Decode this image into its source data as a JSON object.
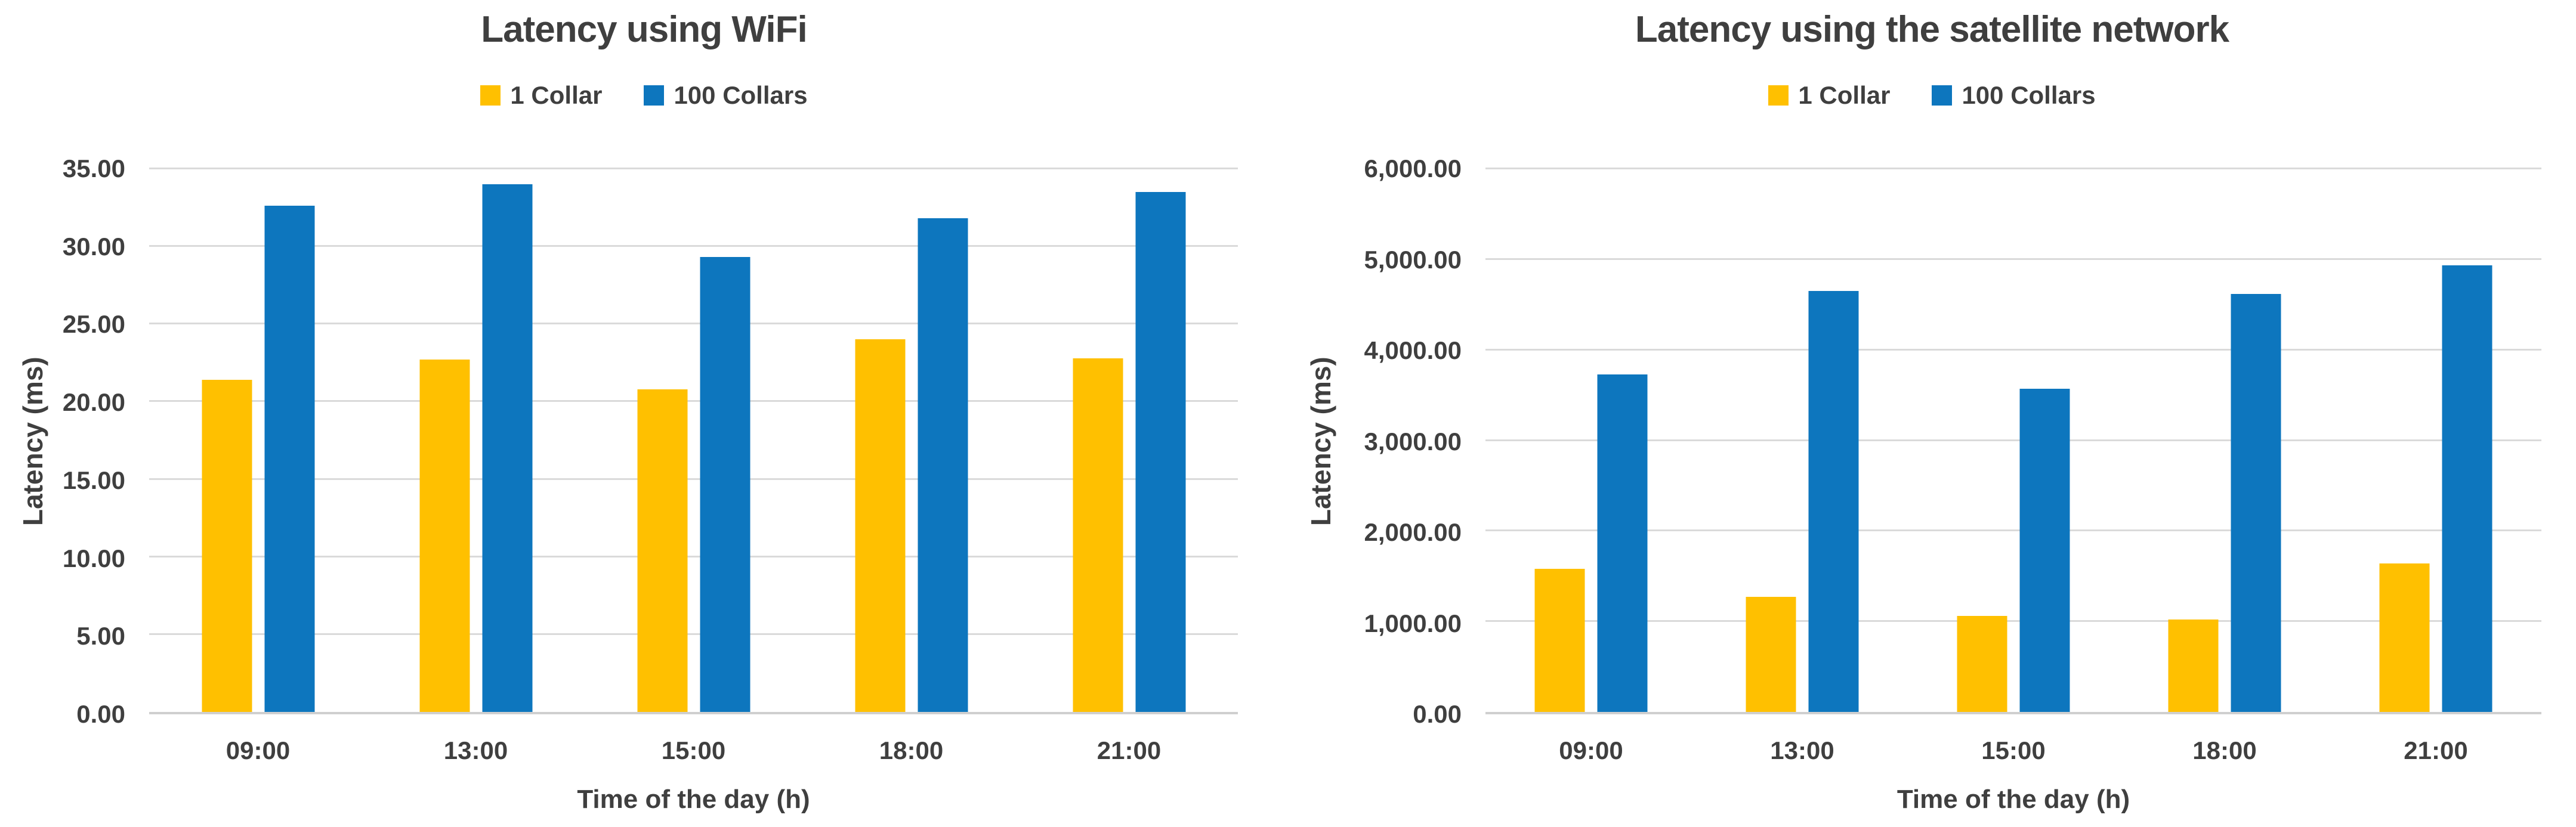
{
  "chart_data": [
    {
      "type": "bar",
      "title": "Latency using WiFi",
      "xlabel": "Time of the day (h)",
      "ylabel": "Latency (ms)",
      "categories": [
        "09:00",
        "13:00",
        "15:00",
        "18:00",
        "21:00"
      ],
      "series": [
        {
          "name": "1 Collar",
          "color": "#FFC000",
          "values": [
            21.4,
            22.7,
            20.8,
            24.0,
            22.8
          ]
        },
        {
          "name": "100 Collars",
          "color": "#0D76BE",
          "values": [
            32.6,
            34.0,
            29.3,
            31.8,
            33.5
          ]
        }
      ],
      "ylim": [
        0,
        35
      ],
      "ystep": 5,
      "yticks": [
        "0.00",
        "5.00",
        "10.00",
        "15.00",
        "20.00",
        "25.00",
        "30.00",
        "35.00"
      ],
      "grid": "horizontal",
      "legend_position": "top"
    },
    {
      "type": "bar",
      "title": "Latency using the satellite network",
      "xlabel": "Time of the day (h)",
      "ylabel": "Latency (ms)",
      "categories": [
        "09:00",
        "13:00",
        "15:00",
        "18:00",
        "21:00"
      ],
      "series": [
        {
          "name": "1 Collar",
          "color": "#FFC000",
          "values": [
            1580,
            1270,
            1060,
            1020,
            1640
          ]
        },
        {
          "name": "100 Collars",
          "color": "#0D76BE",
          "values": [
            3730,
            4650,
            3570,
            4620,
            4930
          ]
        }
      ],
      "ylim": [
        0,
        6000
      ],
      "ystep": 1000,
      "yticks": [
        "0.00",
        "1,000.00",
        "2,000.00",
        "3,000.00",
        "4,000.00",
        "5,000.00",
        "6,000.00"
      ],
      "grid": "horizontal",
      "legend_position": "top"
    }
  ],
  "colors": {
    "text": "#3f3f3f",
    "gridline": "#dadada",
    "axis_line": "#cfcfcf",
    "background": "#ffffff"
  }
}
